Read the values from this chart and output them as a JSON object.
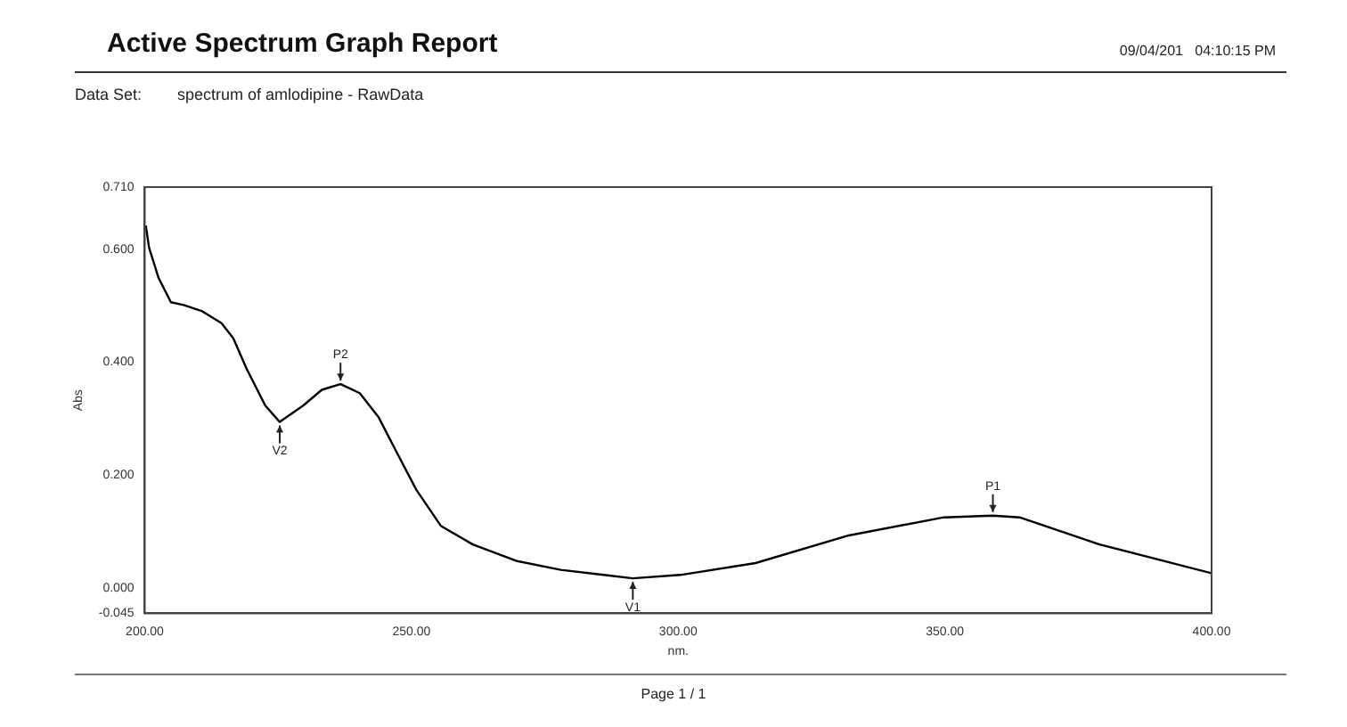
{
  "chart_data": {
    "type": "line",
    "title": "Active Spectrum Graph Report",
    "subtitle": "Data Set:        spectrum of amlodipine - RawData",
    "xlabel": "nm.",
    "ylabel": "Abs",
    "x": [
      200.2,
      200.8,
      202.6,
      204.9,
      207.3,
      210.8,
      214.4,
      216.6,
      219.1,
      222.6,
      225.3,
      229.7,
      233.2,
      236.7,
      240.3,
      243.8,
      247.3,
      250.9,
      255.5,
      261.5,
      269.6,
      278,
      286,
      291.5,
      300.4,
      314.5,
      332,
      349.8,
      359,
      364,
      379,
      400
    ],
    "series": [
      {
        "color": "#000000",
        "values": [
          0.642,
          0.603,
          0.549,
          0.506,
          0.501,
          0.49,
          0.469,
          0.442,
          0.388,
          0.323,
          0.294,
          0.323,
          0.351,
          0.361,
          0.345,
          0.303,
          0.239,
          0.174,
          0.11,
          0.077,
          0.048,
          0.032,
          0.023,
          0.017,
          0.023,
          0.044,
          0.093,
          0.125,
          0.128,
          0.125,
          0.077,
          0.026
        ]
      }
    ],
    "xlim": [
      200,
      400
    ],
    "xticks": [
      {
        "value": 200,
        "label": "200.00"
      },
      {
        "value": 250,
        "label": "250.00"
      },
      {
        "value": 300,
        "label": "300.00"
      },
      {
        "value": 350,
        "label": "350.00"
      },
      {
        "value": 400,
        "label": "400.00"
      }
    ],
    "ylim": [
      -0.045,
      0.71
    ],
    "yticks": [
      {
        "value": -0.045,
        "label": "-0.045"
      },
      {
        "value": 0,
        "label": "0.000"
      },
      {
        "value": 0.2,
        "label": "0.200"
      },
      {
        "value": 0.4,
        "label": "0.400"
      },
      {
        "value": 0.6,
        "label": "0.600"
      },
      {
        "value": 0.71,
        "label": "0.710"
      }
    ],
    "grid": false,
    "legend": false,
    "marker": "none",
    "line_style": "solid",
    "annotations": [
      "09/04/201   04:10:15 PM",
      "Page 1 / 1",
      {
        "text": "P1",
        "x": 359,
        "y": 0.128
      },
      {
        "text": "P2",
        "x": 236.7,
        "y": 0.361
      },
      {
        "text": "V1",
        "x": 291.5,
        "y": 0.017
      },
      {
        "text": "V2",
        "x": 225.3,
        "y": 0.294
      }
    ]
  }
}
